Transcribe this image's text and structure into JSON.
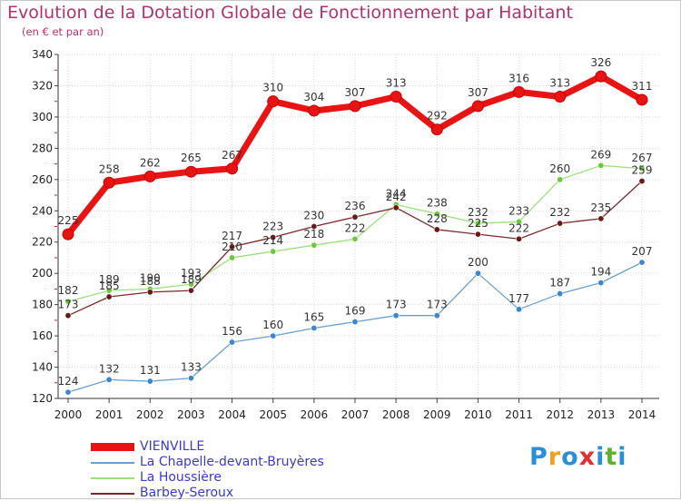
{
  "title": "Evolution de la Dotation Globale de Fonctionnement par Habitant",
  "subtitle": "(en € et par an)",
  "brand": {
    "letters": [
      {
        "ch": "P",
        "color": "#2a8fd6"
      },
      {
        "ch": "r",
        "color": "#f0a020"
      },
      {
        "ch": "o",
        "color": "#2a8fd6"
      },
      {
        "ch": "x",
        "color": "#e03030"
      },
      {
        "ch": "i",
        "color": "#2a8fd6"
      },
      {
        "ch": "t",
        "color": "#60b030"
      },
      {
        "ch": "i",
        "color": "#2a8fd6"
      }
    ]
  },
  "chart_data": {
    "type": "line",
    "title": "Evolution de la Dotation Globale de Fonctionnement par Habitant",
    "subtitle": "(en € et par an)",
    "xlabel": "",
    "ylabel": "",
    "x": [
      "2000",
      "2001",
      "2002",
      "2003",
      "2004",
      "2005",
      "2006",
      "2007",
      "2008",
      "2009",
      "2010",
      "2011",
      "2012",
      "2013",
      "2014"
    ],
    "ylim": [
      120,
      340
    ],
    "yticks": [
      120,
      140,
      160,
      180,
      200,
      220,
      240,
      260,
      280,
      300,
      320,
      340
    ],
    "grid": true,
    "legend_position": "bottom-left",
    "series": [
      {
        "name": "VIENVILLE",
        "color": "#e81414",
        "line_color": "#e81414",
        "marker_color": "#e81414",
        "thick": true,
        "values": [
          225,
          258,
          262,
          265,
          267,
          310,
          304,
          307,
          313,
          292,
          307,
          316,
          313,
          326,
          311
        ]
      },
      {
        "name": "La Chapelle-devant-Bruyères",
        "color": "#6aa0d0",
        "line_color": "#6aa0d0",
        "marker_color": "#3b86cf",
        "values": [
          124,
          132,
          131,
          133,
          156,
          160,
          165,
          169,
          173,
          173,
          200,
          177,
          187,
          194,
          207
        ]
      },
      {
        "name": "La Houssière",
        "color": "#9ee080",
        "line_color": "#9ee080",
        "marker_color": "#6cc93e",
        "values": [
          182,
          189,
          190,
          193,
          210,
          214,
          218,
          222,
          244,
          238,
          232,
          233,
          260,
          269,
          267
        ]
      },
      {
        "name": "Barbey-Seroux",
        "color": "#7a2a2a",
        "line_color": "#7a2a2a",
        "marker_color": "#6a1818",
        "values": [
          173,
          185,
          188,
          189,
          217,
          223,
          230,
          236,
          242,
          228,
          225,
          222,
          232,
          235,
          259
        ]
      }
    ]
  }
}
